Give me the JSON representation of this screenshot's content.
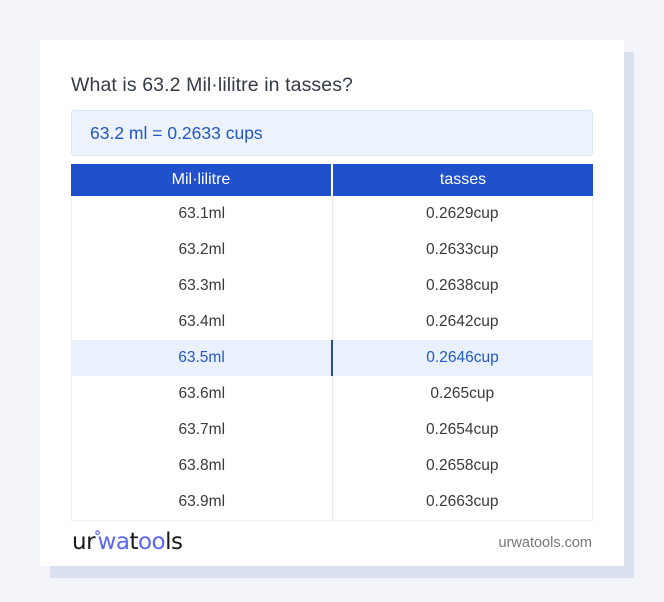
{
  "header": {
    "title": "What is 63.2 Mil·lilitre in tasses?"
  },
  "answer_box": {
    "text": "63.2 ml = 0.2633 cups"
  },
  "table": {
    "columns": [
      "Mil·lilitre",
      "tasses"
    ],
    "rows": [
      [
        "63.1ml",
        "0.2629cup"
      ],
      [
        "63.2ml",
        "0.2633cup"
      ],
      [
        "63.3ml",
        "0.2638cup"
      ],
      [
        "63.4ml",
        "0.2642cup"
      ],
      [
        "63.5ml",
        "0.2646cup"
      ],
      [
        "63.6ml",
        "0.265cup"
      ],
      [
        "63.7ml",
        "0.2654cup"
      ],
      [
        "63.8ml",
        "0.2658cup"
      ],
      [
        "63.9ml",
        "0.2663cup"
      ]
    ],
    "highlighted_row_index": 4
  },
  "footer": {
    "logo_segments": [
      {
        "text": "ur",
        "blue": false,
        "degree": false
      },
      {
        "text": "°",
        "blue": true,
        "degree": true
      },
      {
        "text": "wa",
        "blue": true,
        "degree": false
      },
      {
        "text": "t",
        "blue": false,
        "degree": false
      },
      {
        "text": "oo",
        "blue": true,
        "degree": false
      },
      {
        "text": "ls",
        "blue": false,
        "degree": false
      }
    ],
    "domain": "urwatools.com"
  },
  "colors": {
    "page_bg": "#f2f4f9",
    "card_bg": "#ffffff",
    "table_header_bg": "#2150cd",
    "table_header_text": "#ffffff",
    "answer_bg": "#ecf3fd",
    "answer_border": "#dae6f5",
    "accent_blue": "#2356c5",
    "highlight_row_bg": "#e8f1fd",
    "highlight_row_text": "#2458c6",
    "highlight_divider": "#27508f",
    "row_text": "#373a3e",
    "column_divider": "#e7e9ec",
    "title_text": "#343b46",
    "muted_text": "#75787d",
    "logo_black": "#17181a",
    "logo_blue": "#5b67f3"
  }
}
